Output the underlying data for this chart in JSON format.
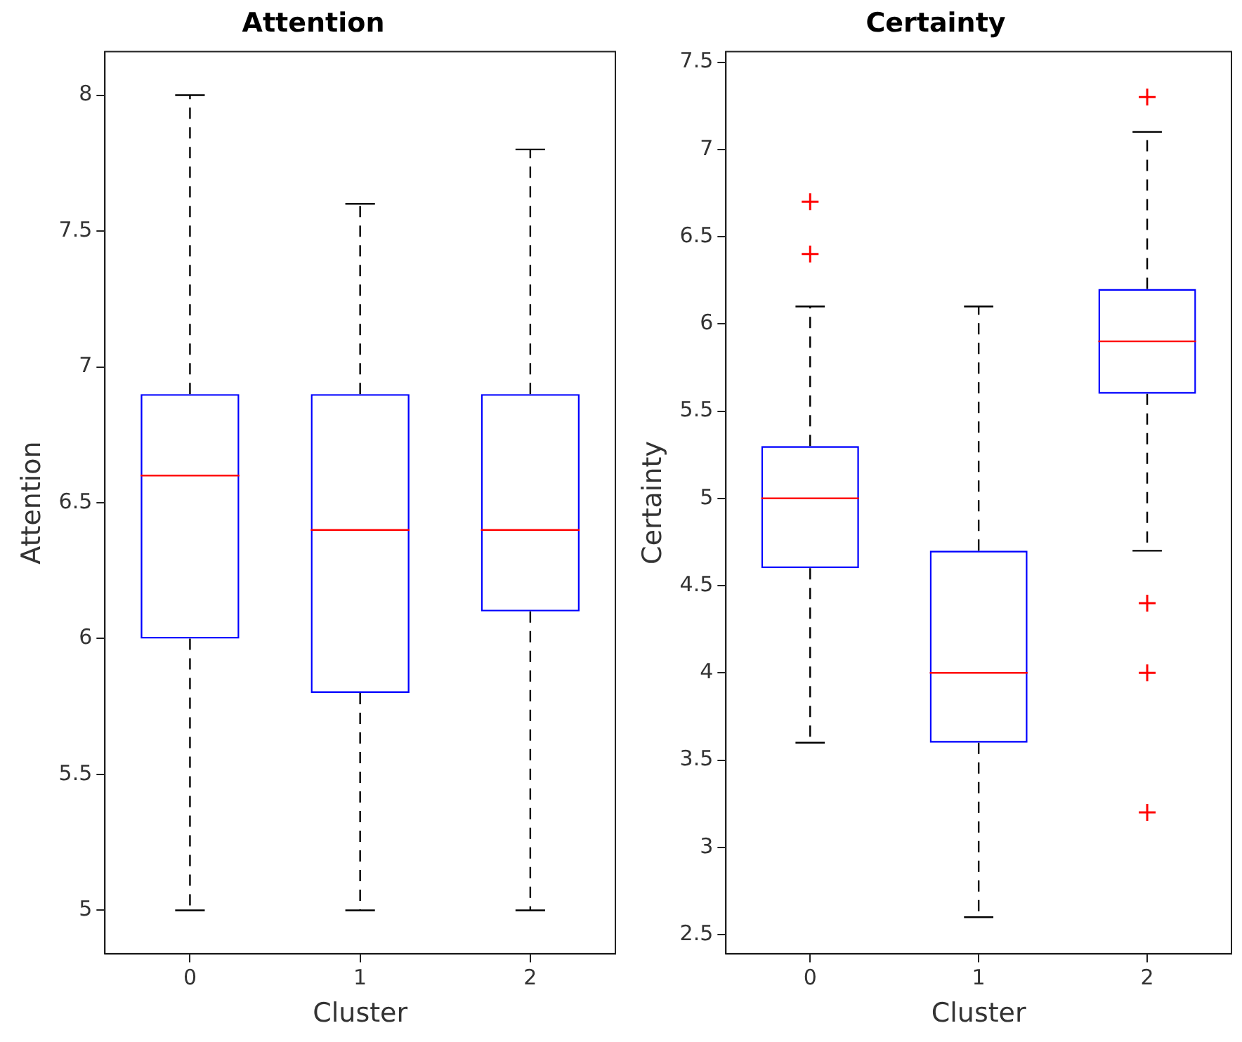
{
  "chart_data": [
    {
      "type": "box",
      "title": "Attention",
      "xlabel": "Cluster",
      "ylabel": "Attention",
      "categories": [
        "0",
        "1",
        "2"
      ],
      "ylim": [
        4.84,
        8.16
      ],
      "yticks": [
        5,
        5.5,
        6,
        6.5,
        7,
        7.5,
        8
      ],
      "grid": false,
      "series": [
        {
          "color": "#0000ff",
          "boxes": [
            {
              "low": 5,
              "q1": 6.0,
              "median": 6.6,
              "q3": 6.9,
              "high": 8
            },
            {
              "low": 5,
              "q1": 5.8,
              "median": 6.4,
              "q3": 6.9,
              "high": 7.6
            },
            {
              "low": 5,
              "q1": 6.1,
              "median": 6.4,
              "q3": 6.9,
              "high": 7.8
            }
          ]
        }
      ]
    },
    {
      "type": "box",
      "title": "Certainty",
      "xlabel": "Cluster",
      "ylabel": "Certainty",
      "categories": [
        "0",
        "1",
        "2"
      ],
      "ylim": [
        2.39,
        7.56
      ],
      "yticks": [
        2.5,
        3,
        3.5,
        4,
        4.5,
        5,
        5.5,
        6,
        6.5,
        7,
        7.5
      ],
      "grid": false,
      "marker": "cross",
      "series": [
        {
          "color": "#0000ff",
          "boxes": [
            {
              "low": 3.6,
              "q1": 4.6,
              "median": 5.0,
              "q3": 5.3,
              "high": 6.1,
              "outliers": [
                6.4,
                6.7
              ]
            },
            {
              "low": 2.6,
              "q1": 3.6,
              "median": 4.0,
              "q3": 4.7,
              "high": 6.1
            },
            {
              "low": 4.7,
              "q1": 5.6,
              "median": 5.9,
              "q3": 6.2,
              "high": 7.1,
              "outliers": [
                7.3,
                4.4,
                4.0,
                3.2
              ]
            }
          ]
        }
      ]
    }
  ]
}
